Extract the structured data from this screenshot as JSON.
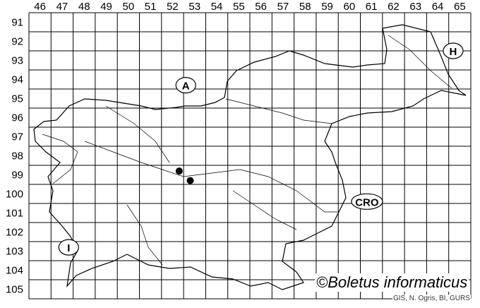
{
  "columns": [
    "46",
    "47",
    "48",
    "49",
    "50",
    "51",
    "52",
    "53",
    "54",
    "55",
    "56",
    "57",
    "58",
    "59",
    "60",
    "61",
    "62",
    "63",
    "64",
    "65"
  ],
  "rows": [
    "91",
    "92",
    "93",
    "94",
    "95",
    "96",
    "97",
    "98",
    "99",
    "100",
    "101",
    "102",
    "103",
    "104",
    "105"
  ],
  "country_labels": [
    {
      "text": "A",
      "col": 52.6,
      "row": 94.3
    },
    {
      "text": "H",
      "col": 64.7,
      "row": 92.5
    },
    {
      "text": "CRO",
      "col": 60.8,
      "row": 100.4
    },
    {
      "text": "I",
      "col": 47.3,
      "row": 102.8
    }
  ],
  "records": [
    {
      "col": 52.3,
      "row": 98.8
    },
    {
      "col": 52.8,
      "row": 99.3
    }
  ],
  "credit": "©Boletus informaticus",
  "source": "GIS, N. Ogris, BI, GURS",
  "colors": {
    "grid": "#000000",
    "points": "#000000",
    "background": "#ffffff"
  }
}
